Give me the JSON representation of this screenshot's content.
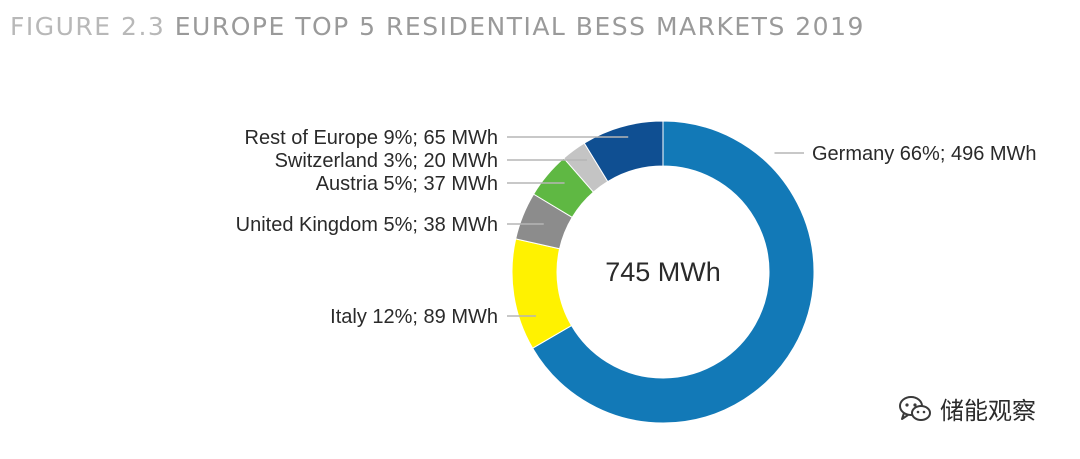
{
  "figure": {
    "number": "FIGURE 2.3",
    "title": "EUROPE TOP 5 RESIDENTIAL BESS MARKETS 2019"
  },
  "chart_data": {
    "type": "pie",
    "variant": "donut",
    "title": "FIGURE 2.3 EUROPE TOP 5 RESIDENTIAL BESS MARKETS 2019",
    "center_label": "745 MWh",
    "total": 745,
    "unit": "MWh",
    "series": [
      {
        "name": "Germany",
        "label": "Germany 66%; 496 MWh",
        "percent": 66,
        "value": 496,
        "color": "#1279b7"
      },
      {
        "name": "Italy",
        "label": "Italy 12%; 89 MWh",
        "percent": 12,
        "value": 89,
        "color": "#fff200"
      },
      {
        "name": "United Kingdom",
        "label": "United Kingdom 5%; 38 MWh",
        "percent": 5,
        "value": 38,
        "color": "#8c8c8c"
      },
      {
        "name": "Austria",
        "label": "Austria 5%; 37 MWh",
        "percent": 5,
        "value": 37,
        "color": "#5fb843"
      },
      {
        "name": "Switzerland",
        "label": "Switzerland 3%; 20 MWh",
        "percent": 3,
        "value": 20,
        "color": "#c4c4c4"
      },
      {
        "name": "Rest of Europe",
        "label": "Rest of Europe 9%; 65 MWh",
        "percent": 9,
        "value": 65,
        "color": "#0f4f92"
      }
    ],
    "legend": "leader-line labels"
  },
  "watermark": {
    "icon": "wechat-icon",
    "text": "储能观察"
  }
}
